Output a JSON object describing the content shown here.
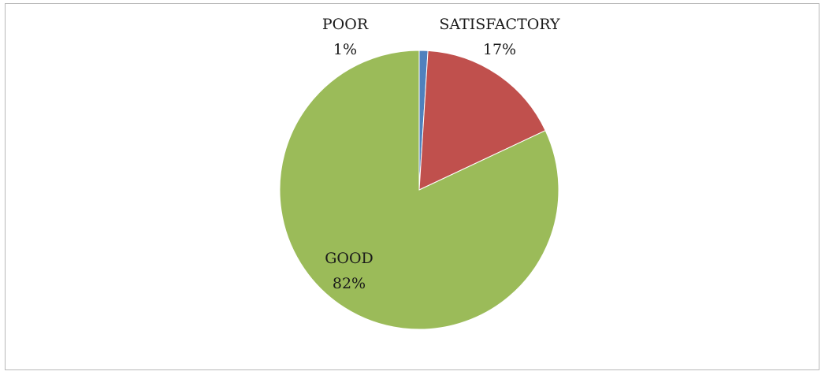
{
  "chart_data": {
    "type": "pie",
    "title": "",
    "categories": [
      "POOR",
      "SATISFACTORY",
      "GOOD"
    ],
    "values": [
      1,
      17,
      82
    ],
    "value_labels": [
      "1%",
      "17%",
      "82%"
    ],
    "colors": [
      "#4f81bd",
      "#c0504d",
      "#9bbb59"
    ],
    "legend": "none",
    "start_angle_deg": 0,
    "direction": "clockwise"
  }
}
